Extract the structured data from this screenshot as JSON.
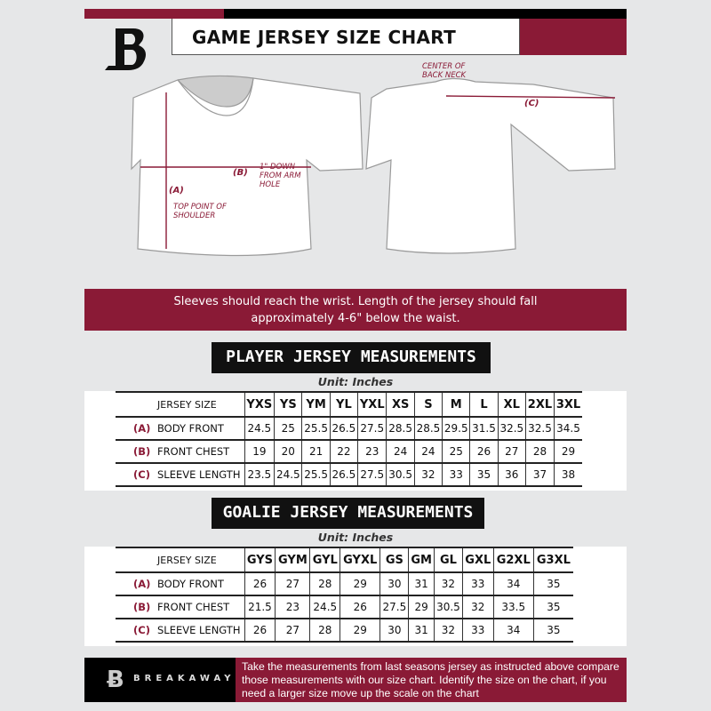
{
  "header": {
    "title": "GAME JERSEY SIZE CHART",
    "logo_letter": "B"
  },
  "diagram": {
    "label_a": "(A)",
    "label_b": "(B)",
    "label_c": "(C)",
    "note_a": "TOP POINT OF SHOULDER",
    "note_b": "1\" DOWN FROM ARM HOLE",
    "note_c": "CENTER OF BACK NECK"
  },
  "banner": {
    "line1": "Sleeves should reach the wrist. Length of the jersey should fall",
    "line2": "approximately 4-6\" below the waist."
  },
  "player": {
    "title": "PLAYER JERSEY MEASUREMENTS",
    "unit": "Unit: Inches",
    "size_header": "JERSEY SIZE",
    "sizes": [
      "YXS",
      "YS",
      "YM",
      "YL",
      "YXL",
      "XS",
      "S",
      "M",
      "L",
      "XL",
      "2XL",
      "3XL"
    ],
    "rows": [
      {
        "code": "(A)",
        "label": "BODY FRONT",
        "values": [
          "24.5",
          "25",
          "25.5",
          "26.5",
          "27.5",
          "28.5",
          "28.5",
          "29.5",
          "31.5",
          "32.5",
          "32.5",
          "34.5"
        ]
      },
      {
        "code": "(B)",
        "label": "FRONT CHEST",
        "values": [
          "19",
          "20",
          "21",
          "22",
          "23",
          "24",
          "24",
          "25",
          "26",
          "27",
          "28",
          "29"
        ]
      },
      {
        "code": "(C)",
        "label": "SLEEVE LENGTH",
        "values": [
          "23.5",
          "24.5",
          "25.5",
          "26.5",
          "27.5",
          "30.5",
          "32",
          "33",
          "35",
          "36",
          "37",
          "38"
        ]
      }
    ]
  },
  "goalie": {
    "title": "GOALIE JERSEY MEASUREMENTS",
    "unit": "Unit: Inches",
    "size_header": "JERSEY SIZE",
    "sizes": [
      "GYS",
      "GYM",
      "GYL",
      "GYXL",
      "GS",
      "GM",
      "GL",
      "GXL",
      "G2XL",
      "G3XL"
    ],
    "rows": [
      {
        "code": "(A)",
        "label": "BODY FRONT",
        "values": [
          "26",
          "27",
          "28",
          "29",
          "30",
          "31",
          "32",
          "33",
          "34",
          "35"
        ]
      },
      {
        "code": "(B)",
        "label": "FRONT CHEST",
        "values": [
          "21.5",
          "23",
          "24.5",
          "26",
          "27.5",
          "29",
          "30.5",
          "32",
          "33.5",
          "35"
        ]
      },
      {
        "code": "(C)",
        "label": "SLEEVE LENGTH",
        "values": [
          "26",
          "27",
          "28",
          "29",
          "30",
          "31",
          "32",
          "33",
          "34",
          "35"
        ]
      }
    ]
  },
  "footer": {
    "brand": "BREAKAWAY",
    "text": "Take the measurements from last seasons jersey as instructed above compare those measurements  with our size chart. Identify the size on the chart, if you need a larger size move up the scale on the chart"
  },
  "colors": {
    "accent": "#8a1a36",
    "dark": "#111111",
    "background": "#e6e7e8"
  }
}
